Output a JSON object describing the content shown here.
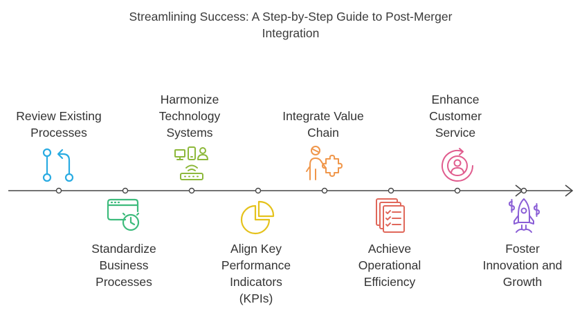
{
  "title": {
    "line1": "Streamlining Success: A Step-by-Step Guide to Post-Merger",
    "line2": "Integration"
  },
  "steps": [
    {
      "lines": [
        "Review Existing",
        "Processes"
      ],
      "icon": "branch-icon",
      "color": "#29ABE2"
    },
    {
      "lines": [
        "Standardize",
        "Business",
        "Processes"
      ],
      "icon": "browser-clock-icon",
      "color": "#3DBB7C"
    },
    {
      "lines": [
        "Harmonize",
        "Technology",
        "Systems"
      ],
      "icon": "devices-network-icon",
      "color": "#8DB83A"
    },
    {
      "lines": [
        "Align Key",
        "Performance",
        "Indicators",
        "(KPIs)"
      ],
      "icon": "pie-chart-icon",
      "color": "#E5C21C"
    },
    {
      "lines": [
        "Integrate Value",
        "Chain"
      ],
      "icon": "person-puzzle-icon",
      "color": "#F0964A"
    },
    {
      "lines": [
        "Achieve",
        "Operational",
        "Efficiency"
      ],
      "icon": "checklist-stack-icon",
      "color": "#E0675A"
    },
    {
      "lines": [
        "Enhance",
        "Customer",
        "Service"
      ],
      "icon": "customer-cycle-icon",
      "color": "#E05C8E"
    },
    {
      "lines": [
        "Foster",
        "Innovation and",
        "Growth"
      ],
      "icon": "rocket-icon",
      "color": "#8A5ED6"
    }
  ]
}
